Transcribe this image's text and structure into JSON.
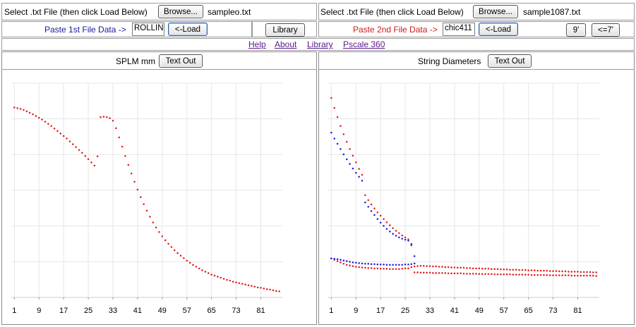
{
  "row1": {
    "left": {
      "prompt": "Select .txt File (then click Load Below)",
      "browse_label": "Browse...",
      "file_name": "sampleo.txt"
    },
    "right": {
      "prompt": "Select .txt File (then click Load Below)",
      "browse_label": "Browse...",
      "file_name": "sample1087.txt"
    }
  },
  "row2": {
    "left": {
      "paste_label": "Paste 1st File Data ->",
      "paste_value": "ROLLIN",
      "load_label": "<-Load",
      "library_label": "Library"
    },
    "right": {
      "paste_label": "Paste 2nd File Data ->",
      "paste_value": "chic411",
      "load_label": "<-Load",
      "nine_label": "9'",
      "seven_label": "<=7'"
    }
  },
  "nav": {
    "help": "Help",
    "about": "About",
    "library": "Library",
    "pscale": "Pscale 360"
  },
  "panels": {
    "left": {
      "title": "SPLM mm",
      "textout_label": "Text Out"
    },
    "right": {
      "title": "String Diameters",
      "textout_label": "Text Out"
    }
  },
  "colors": {
    "series_red": "#e01a1a",
    "series_blue": "#1a1ae0",
    "link": "#5a1a8c",
    "paste1": "#1a1a9a",
    "paste2": "#d01a1a",
    "grid": "#e6e6e6"
  },
  "chart_data": [
    {
      "type": "scatter",
      "title": "SPLM mm",
      "x_ticks": [
        "1",
        "9",
        "17",
        "25",
        "33",
        "41",
        "49",
        "57",
        "65",
        "73",
        "81"
      ],
      "xlim": [
        0,
        88
      ],
      "ylim": [
        0,
        6
      ],
      "grid": true,
      "series": [
        {
          "color": "#e01a1a",
          "x": [
            1,
            2,
            3,
            4,
            5,
            6,
            7,
            8,
            9,
            10,
            11,
            12,
            13,
            14,
            15,
            16,
            17,
            18,
            19,
            20,
            21,
            22,
            23,
            24,
            25,
            26,
            27,
            28,
            29,
            30,
            31,
            32,
            33,
            34,
            35,
            36,
            37,
            38,
            39,
            40,
            41,
            42,
            43,
            44,
            45,
            46,
            47,
            48,
            49,
            50,
            51,
            52,
            53,
            54,
            55,
            56,
            57,
            58,
            59,
            60,
            61,
            62,
            63,
            64,
            65,
            66,
            67,
            68,
            69,
            70,
            71,
            72,
            73,
            74,
            75,
            76,
            77,
            78,
            79,
            80,
            81,
            82,
            83,
            84,
            85,
            86,
            87
          ],
          "y": [
            5.32,
            5.3,
            5.28,
            5.25,
            5.21,
            5.17,
            5.13,
            5.08,
            5.03,
            4.98,
            4.92,
            4.86,
            4.8,
            4.73,
            4.66,
            4.59,
            4.52,
            4.45,
            4.37,
            4.29,
            4.21,
            4.13,
            4.05,
            3.96,
            3.87,
            3.78,
            3.69,
            3.95,
            5.05,
            5.06,
            5.05,
            5.02,
            4.95,
            4.74,
            4.48,
            4.22,
            3.96,
            3.71,
            3.47,
            3.24,
            3.02,
            2.81,
            2.61,
            2.43,
            2.26,
            2.1,
            1.96,
            1.83,
            1.71,
            1.6,
            1.5,
            1.41,
            1.32,
            1.24,
            1.17,
            1.1,
            1.03,
            0.97,
            0.91,
            0.86,
            0.81,
            0.76,
            0.72,
            0.68,
            0.64,
            0.61,
            0.58,
            0.55,
            0.52,
            0.49,
            0.47,
            0.44,
            0.42,
            0.4,
            0.38,
            0.36,
            0.34,
            0.32,
            0.3,
            0.28,
            0.27,
            0.25,
            0.23,
            0.22,
            0.2,
            0.18,
            0.17
          ]
        }
      ]
    },
    {
      "type": "scatter",
      "title": "String Diameters",
      "x_ticks": [
        "1",
        "9",
        "17",
        "25",
        "33",
        "41",
        "49",
        "57",
        "65",
        "73",
        "81"
      ],
      "xlim": [
        0,
        88
      ],
      "ylim": [
        0,
        6.5
      ],
      "grid": true,
      "series": [
        {
          "color": "#e01a1a",
          "x": [
            1,
            2,
            3,
            4,
            5,
            6,
            7,
            8,
            9,
            10,
            11,
            12,
            13,
            14,
            15,
            16,
            17,
            18,
            19,
            20,
            21,
            22,
            23,
            24,
            25,
            26,
            27,
            1,
            2,
            3,
            4,
            5,
            6,
            7,
            8,
            9,
            10,
            11,
            12,
            13,
            14,
            15,
            16,
            17,
            18,
            19,
            20,
            21,
            22,
            23,
            24,
            25,
            26,
            27,
            28,
            29,
            30,
            31,
            32,
            33,
            34,
            35,
            36,
            37,
            38,
            39,
            40,
            41,
            42,
            43,
            44,
            45,
            46,
            47,
            48,
            49,
            50,
            51,
            52,
            53,
            54,
            55,
            56,
            57,
            58,
            59,
            60,
            61,
            62,
            63,
            64,
            65,
            66,
            67,
            68,
            69,
            70,
            71,
            72,
            73,
            74,
            75,
            76,
            77,
            78,
            79,
            80,
            81,
            82,
            83,
            84,
            85,
            86,
            87,
            28,
            29,
            30,
            31,
            32,
            33,
            34,
            35,
            36,
            37,
            38,
            39,
            40,
            41,
            42,
            43,
            44,
            45,
            46,
            47,
            48,
            49,
            50,
            51,
            52,
            53,
            54,
            55,
            56,
            57,
            58,
            59,
            60,
            61,
            62,
            63,
            64,
            65,
            66,
            67,
            68,
            69,
            70,
            71,
            72,
            73,
            74,
            75,
            76,
            77,
            78,
            79,
            80,
            81,
            82,
            83,
            84,
            85,
            86,
            87
          ],
          "y": [
            6.05,
            5.75,
            5.47,
            5.2,
            4.95,
            4.72,
            4.5,
            4.3,
            4.1,
            3.9,
            3.72,
            3.1,
            2.95,
            2.82,
            2.7,
            2.58,
            2.48,
            2.38,
            2.28,
            2.19,
            2.1,
            2.02,
            1.95,
            1.88,
            1.82,
            1.76,
            1.58,
            1.18,
            1.14,
            1.1,
            1.06,
            1.02,
            0.99,
            0.97,
            0.95,
            0.93,
            0.92,
            0.91,
            0.9,
            0.89,
            0.89,
            0.88,
            0.88,
            0.87,
            0.87,
            0.87,
            0.86,
            0.86,
            0.86,
            0.86,
            0.87,
            0.88,
            0.88,
            0.92,
            0.94,
            0.95,
            0.96,
            0.96,
            0.95,
            0.95,
            0.94,
            0.94,
            0.93,
            0.93,
            0.92,
            0.92,
            0.91,
            0.91,
            0.9,
            0.9,
            0.9,
            0.89,
            0.89,
            0.88,
            0.88,
            0.88,
            0.87,
            0.87,
            0.87,
            0.86,
            0.86,
            0.86,
            0.85,
            0.85,
            0.85,
            0.84,
            0.84,
            0.84,
            0.83,
            0.83,
            0.83,
            0.82,
            0.82,
            0.82,
            0.81,
            0.81,
            0.81,
            0.81,
            0.8,
            0.8,
            0.8,
            0.79,
            0.79,
            0.79,
            0.78,
            0.78,
            0.78,
            0.78,
            0.77,
            0.77,
            0.77,
            0.77,
            0.76,
            0.76,
            0.76,
            0.76,
            0.75,
            0.75,
            0.75,
            0.75,
            0.74,
            0.74,
            0.74,
            0.74,
            0.74,
            0.73,
            0.73,
            0.73,
            0.73,
            0.73,
            0.72,
            0.72,
            0.72,
            0.72,
            0.72,
            0.71,
            0.71,
            0.71,
            0.71,
            0.71,
            0.7,
            0.7,
            0.7,
            0.7,
            0.7,
            0.7,
            0.69,
            0.69,
            0.69,
            0.69,
            0.69,
            0.69,
            0.68,
            0.68,
            0.68,
            0.68,
            0.68,
            0.68,
            0.67,
            0.67,
            0.67,
            0.67,
            0.67,
            0.67,
            0.67,
            0.66,
            0.66,
            0.66,
            0.66,
            0.66,
            0.66,
            0.66,
            0.66,
            0.65
          ]
        },
        {
          "color": "#1a1ae0",
          "x": [
            1,
            2,
            3,
            4,
            5,
            6,
            7,
            8,
            9,
            10,
            11,
            12,
            13,
            14,
            15,
            16,
            17,
            18,
            19,
            20,
            21,
            22,
            23,
            24,
            25,
            26,
            27,
            28,
            1,
            2,
            3,
            4,
            5,
            6,
            7,
            8,
            9,
            10,
            11,
            12,
            13,
            14,
            15,
            16,
            17,
            18,
            19,
            20,
            21,
            22,
            23,
            24,
            25,
            26,
            27,
            28
          ],
          "y": [
            5.0,
            4.82,
            4.66,
            4.5,
            4.34,
            4.19,
            4.05,
            3.91,
            3.78,
            3.66,
            3.54,
            2.88,
            2.75,
            2.62,
            2.5,
            2.38,
            2.27,
            2.17,
            2.08,
            2.0,
            1.93,
            1.87,
            1.82,
            1.78,
            1.75,
            1.72,
            1.62,
            1.25,
            1.18,
            1.17,
            1.16,
            1.14,
            1.12,
            1.1,
            1.08,
            1.06,
            1.05,
            1.04,
            1.03,
            1.02,
            1.02,
            1.01,
            1.01,
            1.0,
            1.0,
            1.0,
            0.99,
            0.99,
            0.99,
            0.99,
            0.99,
            0.99,
            1.0,
            1.0,
            1.01,
            1.03
          ]
        }
      ]
    }
  ]
}
